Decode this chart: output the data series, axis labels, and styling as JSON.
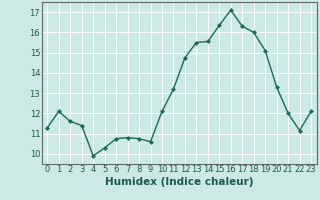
{
  "x": [
    0,
    1,
    2,
    3,
    4,
    5,
    6,
    7,
    8,
    9,
    10,
    11,
    12,
    13,
    14,
    15,
    16,
    17,
    18,
    19,
    20,
    21,
    22,
    23
  ],
  "y": [
    11.3,
    12.1,
    11.6,
    11.4,
    9.9,
    10.3,
    10.75,
    10.8,
    10.75,
    10.6,
    12.1,
    13.2,
    14.75,
    15.5,
    15.55,
    16.35,
    17.1,
    16.3,
    16.0,
    15.1,
    13.3,
    12.0,
    11.15,
    12.1
  ],
  "line_color": "#1a6b5a",
  "marker": "D",
  "marker_size": 2.0,
  "linewidth": 1.0,
  "xlabel": "Humidex (Indice chaleur)",
  "xlabel_fontsize": 7.5,
  "background_color": "#cce9e6",
  "grid_color": "#ffffff",
  "ylim": [
    9.5,
    17.5
  ],
  "xlim": [
    -0.5,
    23.5
  ],
  "yticks": [
    10,
    11,
    12,
    13,
    14,
    15,
    16,
    17
  ],
  "xticks": [
    0,
    1,
    2,
    3,
    4,
    5,
    6,
    7,
    8,
    9,
    10,
    11,
    12,
    13,
    14,
    15,
    16,
    17,
    18,
    19,
    20,
    21,
    22,
    23
  ],
  "tick_fontsize": 6.0,
  "axis_color": "#888888",
  "spine_color": "#666666"
}
